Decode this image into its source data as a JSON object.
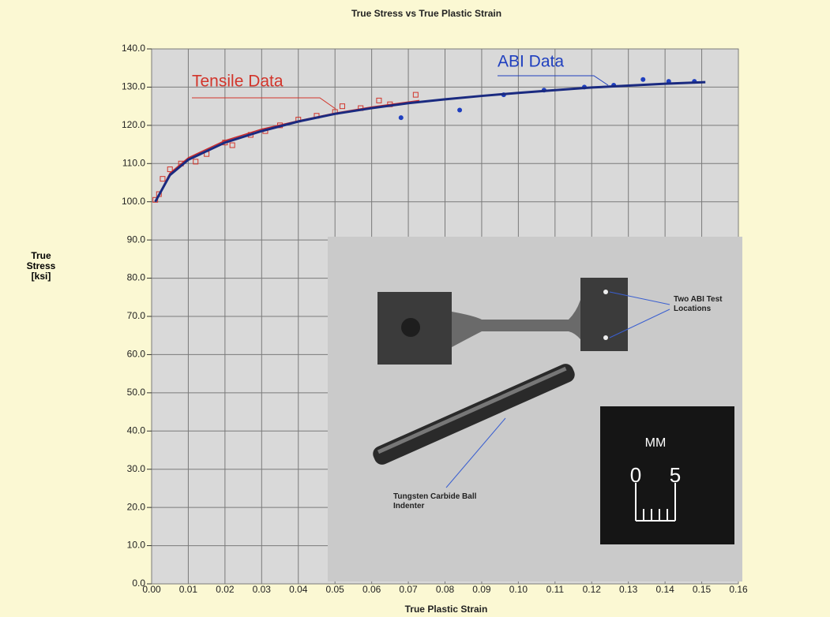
{
  "chart_data": {
    "type": "scatter",
    "title": "True Stress vs True Plastic Strain",
    "xlabel": "True Plastic Strain",
    "ylabel": "True Stress [ksi]",
    "xlim": [
      0,
      0.16
    ],
    "ylim": [
      0,
      140
    ],
    "grid": true,
    "xticks": [
      {
        "value": 0,
        "label": "0.00"
      },
      0.01,
      0.02,
      0.03,
      0.04,
      0.05,
      0.06,
      0.07,
      0.08,
      0.09,
      {
        "value": 0.1,
        "label": "0.10"
      },
      0.11,
      0.12,
      0.13,
      0.14,
      0.15,
      0.16
    ],
    "yticks": [
      {
        "value": 0,
        "label": "0.0"
      },
      {
        "value": 10,
        "label": "10.0"
      },
      {
        "value": 20,
        "label": "20.0"
      },
      {
        "value": 30,
        "label": "30.0"
      },
      {
        "value": 40,
        "label": "40.0"
      },
      {
        "value": 50,
        "label": "50.0"
      },
      {
        "value": 60,
        "label": "60.0"
      },
      {
        "value": 70,
        "label": "70.0"
      },
      {
        "value": 80,
        "label": "80.0"
      },
      {
        "value": 90,
        "label": "90.0"
      },
      {
        "value": 100,
        "label": "100.0"
      },
      {
        "value": 110,
        "label": "110.0"
      },
      {
        "value": 120,
        "label": "120.0"
      },
      {
        "value": 130,
        "label": "130.0"
      },
      {
        "value": 140,
        "label": "140.0"
      }
    ],
    "series": [
      {
        "name": "Tensile Data",
        "type": "scatter",
        "marker": "square",
        "color": "#d2352b",
        "x": [
          0.001,
          0.002,
          0.003,
          0.005,
          0.008,
          0.012,
          0.015,
          0.02,
          0.022,
          0.027,
          0.031,
          0.035,
          0.04,
          0.045,
          0.05,
          0.052,
          0.057,
          0.062,
          0.065,
          0.072
        ],
        "y": [
          100.5,
          102,
          106,
          108.5,
          110,
          110.5,
          112.5,
          115.5,
          114.8,
          117.5,
          118.5,
          120,
          121.5,
          122.5,
          123.5,
          125,
          124.5,
          126.5,
          125.5,
          128
        ]
      },
      {
        "type": "line",
        "color": "#cc2a2a",
        "x": [
          0.001,
          0.005,
          0.01,
          0.02,
          0.03,
          0.04,
          0.05,
          0.06,
          0.073
        ],
        "y": [
          100,
          107.5,
          111.5,
          116,
          119,
          121.2,
          123.2,
          124.8,
          126.5
        ]
      },
      {
        "name": "ABI Data",
        "type": "scatter",
        "marker": "circle",
        "color": "#1f3fbf",
        "x": [
          0.068,
          0.084,
          0.096,
          0.107,
          0.118,
          0.126,
          0.134,
          0.141,
          0.148
        ],
        "y": [
          122,
          124,
          128,
          129.2,
          130,
          130.5,
          132,
          131.5,
          131.5
        ]
      },
      {
        "type": "line",
        "color": "#1a2a80",
        "x": [
          0.001,
          0.005,
          0.01,
          0.02,
          0.03,
          0.04,
          0.05,
          0.06,
          0.07,
          0.08,
          0.09,
          0.1,
          0.11,
          0.12,
          0.13,
          0.14,
          0.151
        ],
        "y": [
          100,
          107,
          111,
          115.5,
          118.5,
          121,
          123,
          124.5,
          125.8,
          126.8,
          127.7,
          128.5,
          129.2,
          129.9,
          130.4,
          130.9,
          131.3
        ]
      }
    ]
  },
  "inset_photo": {
    "test_locations": "Two ABI Test Locations",
    "indenter": "Tungsten Carbide Ball Indenter",
    "scale_unit": "MM",
    "scale_start": "0",
    "scale_end": "5"
  }
}
